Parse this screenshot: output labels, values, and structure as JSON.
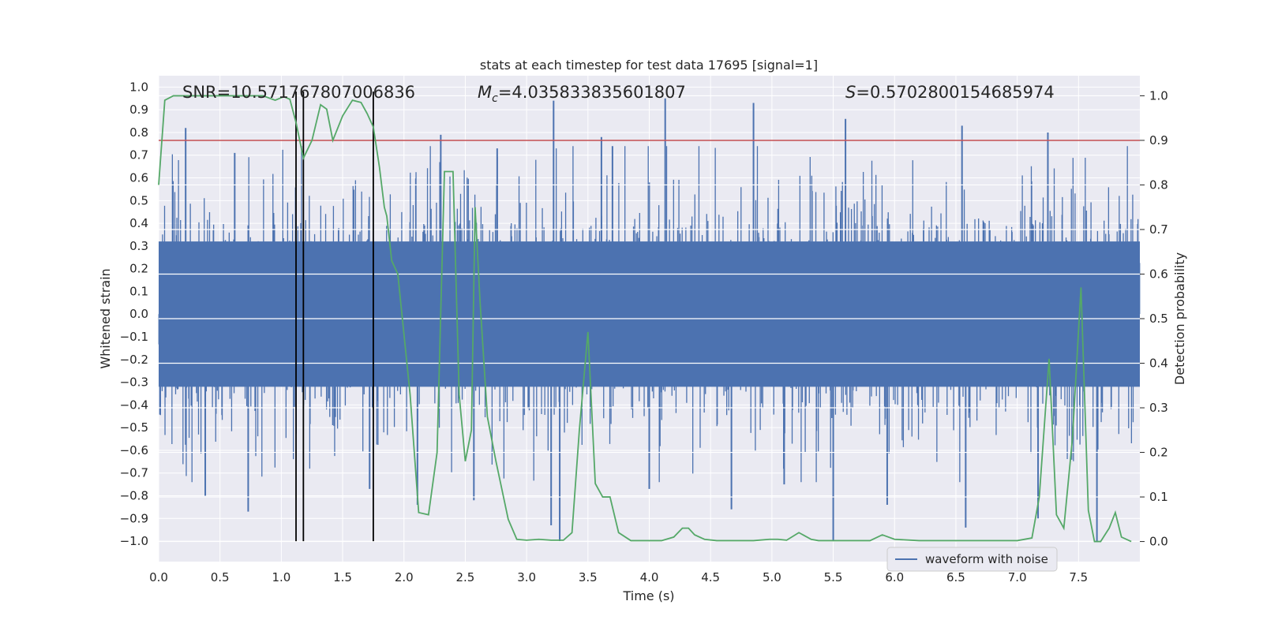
{
  "chart_data": {
    "type": "line",
    "title": "stats at each timestep for test data 17695 [signal=1]",
    "xlabel": "Time (s)",
    "ylabel_left": "Whitened strain",
    "ylabel_right": "Detection probability",
    "xlim": [
      0.0,
      8.0
    ],
    "ylim_left": [
      -1.09,
      1.05
    ],
    "ylim_right": [
      -0.045,
      1.045
    ],
    "xticks": [
      "0.0",
      "0.5",
      "1.0",
      "1.5",
      "2.0",
      "2.5",
      "3.0",
      "3.5",
      "4.0",
      "4.5",
      "5.0",
      "5.5",
      "6.0",
      "6.5",
      "7.0",
      "7.5"
    ],
    "yticks_left": [
      "1.0",
      "0.9",
      "0.8",
      "0.7",
      "0.6",
      "0.5",
      "0.4",
      "0.3",
      "0.2",
      "0.1",
      "0.0",
      "-0.1",
      "-0.2",
      "-0.3",
      "-0.4",
      "-0.5",
      "-0.6",
      "-0.7",
      "-0.8",
      "-0.9",
      "-1.0"
    ],
    "yticks_right": [
      "1.0",
      "0.9",
      "0.8",
      "0.7",
      "0.6",
      "0.5",
      "0.4",
      "0.3",
      "0.2",
      "0.1",
      "0.0"
    ],
    "annotations": {
      "snr": "SNR=10.571767807006836",
      "mc_symbol": "M",
      "mc_sub": "c",
      "mc_value": "=4.035833835601807",
      "s_symbol": "S",
      "s_value": "=0.5702800154685974"
    },
    "threshold": 0.9,
    "vertical_lines": [
      1.12,
      1.18,
      1.75
    ],
    "legend": [
      "waveform with noise"
    ],
    "legend_position": "lower-right",
    "colors": {
      "waveform": "#4c72b0",
      "probability": "#55a868",
      "threshold": "#c44e52",
      "vlines": "#000000",
      "background": "#eaeaf2",
      "grid": "#ffffff"
    },
    "waveform_envelope_rms": 0.27,
    "waveform_spikes": [
      {
        "t": 0.22,
        "v": 0.82
      },
      {
        "t": 3.22,
        "v": 0.94
      },
      {
        "t": 4.13,
        "v": 0.95
      },
      {
        "t": 4.85,
        "v": 0.93
      },
      {
        "t": 5.6,
        "v": 0.86
      },
      {
        "t": 6.55,
        "v": 0.83
      },
      {
        "t": 7.25,
        "v": 0.8
      },
      {
        "t": 3.61,
        "v": 0.78
      },
      {
        "t": 2.3,
        "v": 0.79
      },
      {
        "t": 0.73,
        "v": -0.87
      },
      {
        "t": 3.27,
        "v": -1.0
      },
      {
        "t": 5.5,
        "v": -1.0
      },
      {
        "t": 6.58,
        "v": -0.94
      },
      {
        "t": 7.65,
        "v": -1.0
      },
      {
        "t": 2.11,
        "v": -0.84
      },
      {
        "t": 0.38,
        "v": -0.8
      },
      {
        "t": 3.2,
        "v": -0.93
      },
      {
        "t": 4.67,
        "v": -0.86
      },
      {
        "t": 5.94,
        "v": -0.84
      },
      {
        "t": 7.17,
        "v": -0.9
      },
      {
        "t": 2.57,
        "v": -0.82
      },
      {
        "t": 4.0,
        "v": -0.77
      },
      {
        "t": 1.72,
        "v": -0.77
      },
      {
        "t": 5.1,
        "v": -0.75
      },
      {
        "t": 0.62,
        "v": 0.71
      },
      {
        "t": 2.76,
        "v": 0.73
      },
      {
        "t": 3.7,
        "v": 0.74
      }
    ],
    "probability": {
      "t": [
        0.0,
        0.05,
        0.12,
        0.2,
        0.3,
        0.5,
        0.7,
        0.85,
        0.95,
        1.02,
        1.07,
        1.12,
        1.18,
        1.25,
        1.32,
        1.37,
        1.42,
        1.5,
        1.58,
        1.65,
        1.7,
        1.75,
        1.8,
        1.84,
        1.86,
        1.9,
        1.95,
        2.05,
        2.12,
        2.2,
        2.27,
        2.33,
        2.4,
        2.45,
        2.5,
        2.55,
        2.58,
        2.62,
        2.68,
        2.75,
        2.85,
        2.92,
        3.0,
        3.1,
        3.2,
        3.3,
        3.37,
        3.43,
        3.5,
        3.56,
        3.62,
        3.68,
        3.75,
        3.85,
        4.0,
        4.1,
        4.2,
        4.27,
        4.32,
        4.37,
        4.45,
        4.55,
        4.7,
        4.85,
        4.98,
        5.05,
        5.12,
        5.22,
        5.32,
        5.38,
        5.45,
        5.6,
        5.8,
        5.9,
        6.0,
        6.2,
        6.5,
        6.8,
        7.0,
        7.12,
        7.18,
        7.26,
        7.32,
        7.38,
        7.45,
        7.52,
        7.58,
        7.63,
        7.68,
        7.75,
        7.8,
        7.85,
        7.93
      ],
      "p": [
        0.8,
        0.99,
        1.0,
        1.0,
        1.0,
        1.0,
        1.0,
        1.0,
        0.99,
        0.998,
        0.992,
        0.94,
        0.86,
        0.9,
        0.98,
        0.97,
        0.9,
        0.955,
        0.99,
        0.985,
        0.96,
        0.93,
        0.84,
        0.75,
        0.73,
        0.63,
        0.6,
        0.33,
        0.065,
        0.06,
        0.2,
        0.83,
        0.83,
        0.33,
        0.18,
        0.25,
        0.75,
        0.54,
        0.28,
        0.18,
        0.05,
        0.005,
        0.003,
        0.005,
        0.003,
        0.003,
        0.02,
        0.25,
        0.47,
        0.13,
        0.1,
        0.1,
        0.02,
        0.002,
        0.002,
        0.002,
        0.01,
        0.03,
        0.03,
        0.015,
        0.005,
        0.002,
        0.002,
        0.002,
        0.005,
        0.005,
        0.003,
        0.02,
        0.005,
        0.002,
        0.002,
        0.002,
        0.002,
        0.015,
        0.005,
        0.002,
        0.002,
        0.002,
        0.002,
        0.008,
        0.1,
        0.41,
        0.06,
        0.03,
        0.23,
        0.57,
        0.07,
        0.0,
        0.0,
        0.03,
        0.065,
        0.01,
        0.0
      ]
    }
  }
}
